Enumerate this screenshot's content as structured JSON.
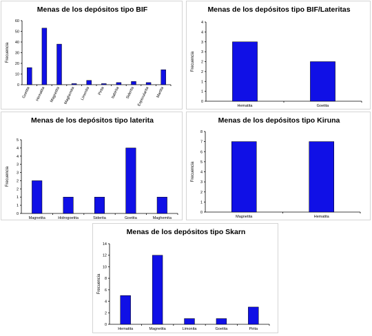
{
  "colors": {
    "bar": "#1010e6",
    "axis": "#000000",
    "border": "#d4d4d4"
  },
  "chart_data": [
    {
      "id": "bif",
      "type": "bar",
      "title": "Menas de los depósitos tipo BIF",
      "ylabel": "Frecuencia",
      "xlabel": "",
      "ylim": [
        0,
        60
      ],
      "yticks": [
        0,
        10,
        20,
        30,
        40,
        50,
        60
      ],
      "categories": [
        "Goetita",
        "Hematita",
        "Magnetita",
        "Maghemita",
        "Limonita",
        "Pirita",
        "Itabirita",
        "Siderita",
        "Especularita",
        "Martita"
      ],
      "values": [
        16,
        53,
        38,
        1,
        4,
        1,
        2,
        3,
        2,
        14
      ],
      "rotate_labels": true
    },
    {
      "id": "bif_lat",
      "type": "bar",
      "title": "Menas de los depósitos tipo BIF/Lateritas",
      "ylabel": "Frecuencia",
      "xlabel": "",
      "ylim": [
        0,
        4
      ],
      "yticks": [
        0,
        0.5,
        1,
        1.5,
        2,
        2.5,
        3,
        3.5,
        4
      ],
      "ytick_labels": [
        "0",
        "1",
        "1",
        "2",
        "2",
        "3",
        "3",
        "4",
        "4"
      ],
      "categories": [
        "Hematita",
        "Goetita"
      ],
      "values": [
        3,
        2
      ],
      "rotate_labels": false
    },
    {
      "id": "laterita",
      "type": "bar",
      "title": "Menas de los depósitos tipo laterita",
      "ylabel": "Frecuencia",
      "xlabel": "",
      "ylim": [
        0,
        4.5
      ],
      "yticks": [
        0,
        0.5,
        1,
        1.5,
        2,
        2.5,
        3,
        3.5,
        4,
        4.5
      ],
      "ytick_labels": [
        "0",
        "1",
        "1",
        "2",
        "2",
        "3",
        "3",
        "4",
        "4",
        "5"
      ],
      "categories": [
        "Magnetita",
        "Hidrogoetita",
        "Siderita",
        "Goetita",
        "Maghemita"
      ],
      "values": [
        2,
        1,
        1,
        4,
        1
      ],
      "rotate_labels": false
    },
    {
      "id": "kiruna",
      "type": "bar",
      "title": "Menas de los depósitos tipo Kiruna",
      "ylabel": "Frecuencia",
      "xlabel": "",
      "ylim": [
        0,
        8
      ],
      "yticks": [
        0,
        1,
        2,
        3,
        4,
        5,
        6,
        7,
        8
      ],
      "categories": [
        "Magnetita",
        "Hematita"
      ],
      "values": [
        7,
        7
      ],
      "rotate_labels": false
    },
    {
      "id": "skarn",
      "type": "bar",
      "title": "Menas de los depósitos tipo Skarn",
      "ylabel": "Frecuencia",
      "xlabel": "",
      "ylim": [
        0,
        14
      ],
      "yticks": [
        0,
        2,
        4,
        6,
        8,
        10,
        12,
        14
      ],
      "categories": [
        "Hematita",
        "Magnetita",
        "Limonita",
        "Goetita",
        "Pirita"
      ],
      "values": [
        5,
        12,
        1,
        1,
        3
      ],
      "rotate_labels": false
    }
  ]
}
